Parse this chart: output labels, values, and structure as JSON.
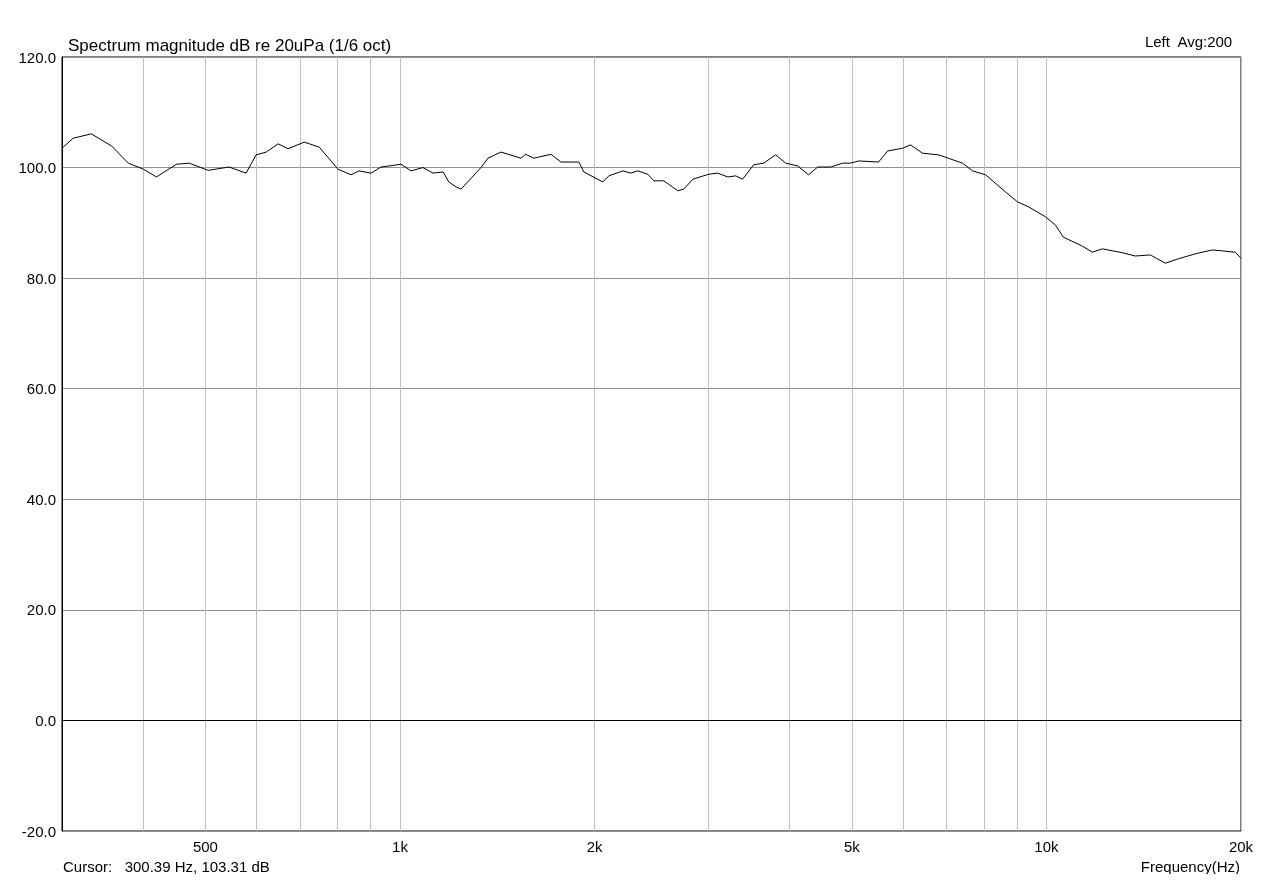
{
  "chart_data": {
    "type": "line",
    "title": "Spectrum magnitude dB re 20uPa (1/6 oct)",
    "xlabel": "Frequency(Hz)",
    "annotations": [
      "Left  Avg:200",
      "Cursor:   300.39 Hz, 103.31 dB"
    ],
    "log": "x",
    "grid": true,
    "xlim": [
      300,
      20000
    ],
    "ylim": [
      -20,
      120
    ],
    "xticks": [
      {
        "value": 400,
        "label": null
      },
      {
        "value": 500,
        "label": "500"
      },
      {
        "value": 600,
        "label": null
      },
      {
        "value": 700,
        "label": null
      },
      {
        "value": 800,
        "label": null
      },
      {
        "value": 900,
        "label": null
      },
      {
        "value": 1000,
        "label": "1k"
      },
      {
        "value": 2000,
        "label": "2k"
      },
      {
        "value": 3000,
        "label": null
      },
      {
        "value": 4000,
        "label": null
      },
      {
        "value": 5000,
        "label": "5k"
      },
      {
        "value": 6000,
        "label": null
      },
      {
        "value": 7000,
        "label": null
      },
      {
        "value": 8000,
        "label": null
      },
      {
        "value": 9000,
        "label": null
      },
      {
        "value": 10000,
        "label": "10k"
      },
      {
        "value": 20000,
        "label": "20k"
      }
    ],
    "yticks": [
      {
        "value": -20,
        "label": "-20.0"
      },
      {
        "value": 0,
        "label": "0.0"
      },
      {
        "value": 20,
        "label": "20.0"
      },
      {
        "value": 40,
        "label": "40.0"
      },
      {
        "value": 60,
        "label": "60.0"
      },
      {
        "value": 80,
        "label": "80.0"
      },
      {
        "value": 100,
        "label": "100.0"
      },
      {
        "value": 120,
        "label": "120.0"
      }
    ],
    "x": [
      300,
      312,
      333,
      358,
      380,
      401,
      420,
      451,
      472,
      505,
      544,
      578,
      599,
      621,
      648,
      671,
      711,
      750,
      802,
      840,
      864,
      902,
      935,
      1004,
      1040,
      1085,
      1125,
      1166,
      1190,
      1221,
      1243,
      1334,
      1368,
      1433,
      1538,
      1565,
      1611,
      1712,
      1774,
      1891,
      1925,
      2060,
      2104,
      2212,
      2275,
      2333,
      2417,
      2470,
      2559,
      2690,
      2748,
      2838,
      3004,
      3101,
      3214,
      3306,
      3389,
      3525,
      3653,
      3812,
      3950,
      4122,
      4287,
      4427,
      4637,
      4839,
      4979,
      5123,
      5500,
      5680,
      5990,
      6163,
      6433,
      6810,
      7418,
      7686,
      8049,
      8644,
      9020,
      9380,
      9965,
      10325,
      10624,
      11364,
      11777,
      12205,
      13106,
      13726,
      14478,
      15277,
      15995,
      16996,
      18058,
      19593,
      20000
    ],
    "series": [
      {
        "color": "#000000",
        "values": [
          103.5,
          105.3,
          106.1,
          103.9,
          100.8,
          99.7,
          98.3,
          100.6,
          100.8,
          99.5,
          100.1,
          99.0,
          102.3,
          102.8,
          104.3,
          103.4,
          104.6,
          103.7,
          99.7,
          98.7,
          99.4,
          99.0,
          100.1,
          100.6,
          99.4,
          100.0,
          99.0,
          99.2,
          97.4,
          96.5,
          96.1,
          100.0,
          101.7,
          102.8,
          101.7,
          102.4,
          101.7,
          102.4,
          101.0,
          101.0,
          99.2,
          97.4,
          98.5,
          99.4,
          99.0,
          99.4,
          98.8,
          97.6,
          97.6,
          95.8,
          96.1,
          97.9,
          98.8,
          99.0,
          98.3,
          98.5,
          97.9,
          100.5,
          100.8,
          102.3,
          100.8,
          100.3,
          98.7,
          100.1,
          100.1,
          100.8,
          100.8,
          101.2,
          101.0,
          103.0,
          103.5,
          104.1,
          102.6,
          102.3,
          100.8,
          99.4,
          98.7,
          95.6,
          93.8,
          92.9,
          91.1,
          89.6,
          87.4,
          85.8,
          84.7,
          85.3,
          84.6,
          84.0,
          84.2,
          82.7,
          83.5,
          84.4,
          85.1,
          84.7,
          83.6
        ]
      }
    ]
  }
}
